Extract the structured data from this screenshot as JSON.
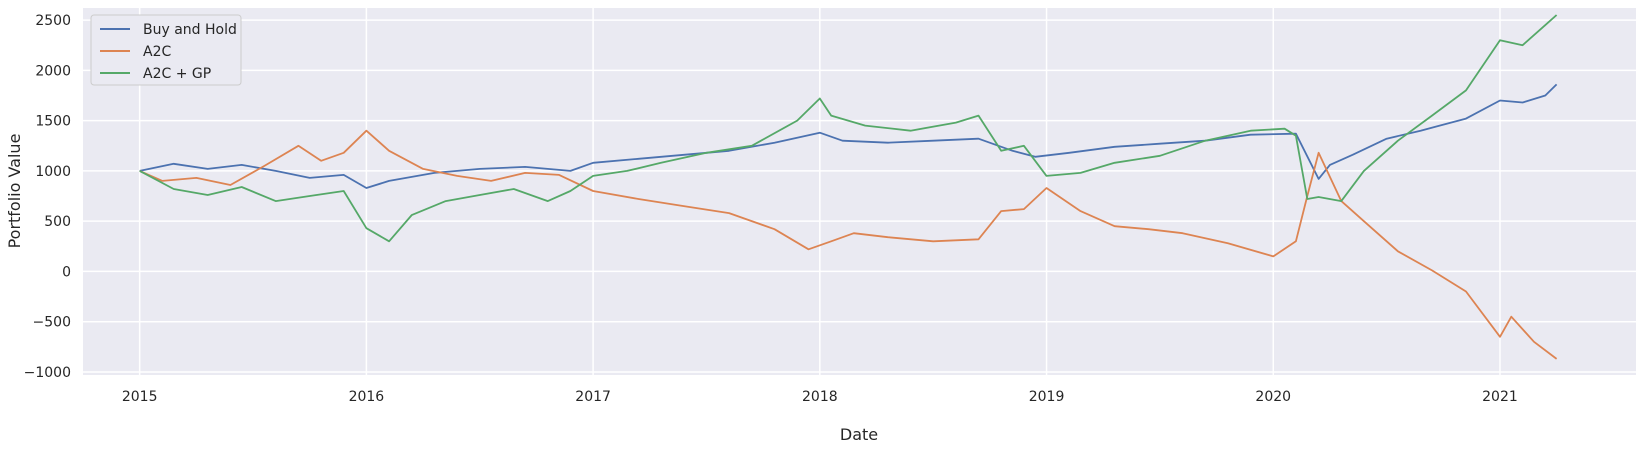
{
  "chart_data": {
    "type": "line",
    "title": "",
    "xlabel": "Date",
    "ylabel": "Portfolio Value",
    "xlim": [
      2014.75,
      2021.6
    ],
    "ylim": [
      -1030,
      2620
    ],
    "x_ticks": [
      2015,
      2016,
      2017,
      2018,
      2019,
      2020,
      2021
    ],
    "x_tick_labels": [
      "2015",
      "2016",
      "2017",
      "2018",
      "2019",
      "2020",
      "2021"
    ],
    "y_ticks": [
      -1000,
      -500,
      0,
      500,
      1000,
      1500,
      2000,
      2500
    ],
    "y_tick_labels": [
      "−1000",
      "−500",
      "0",
      "500",
      "1000",
      "1500",
      "2000",
      "2500"
    ],
    "grid": true,
    "legend_position": "top-left",
    "series": [
      {
        "name": "Buy and Hold",
        "color": "#4c72b0",
        "x": [
          2015.0,
          2015.15,
          2015.3,
          2015.45,
          2015.6,
          2015.75,
          2015.9,
          2016.0,
          2016.1,
          2016.3,
          2016.5,
          2016.7,
          2016.9,
          2017.0,
          2017.2,
          2017.4,
          2017.6,
          2017.8,
          2018.0,
          2018.1,
          2018.3,
          2018.5,
          2018.7,
          2018.85,
          2018.95,
          2019.1,
          2019.3,
          2019.5,
          2019.7,
          2019.9,
          2020.1,
          2020.2,
          2020.25,
          2020.35,
          2020.5,
          2020.65,
          2020.85,
          2021.0,
          2021.1,
          2021.2,
          2021.25
        ],
        "y": [
          1000,
          1070,
          1020,
          1060,
          1000,
          930,
          960,
          830,
          900,
          980,
          1020,
          1040,
          1000,
          1080,
          1120,
          1160,
          1200,
          1280,
          1380,
          1300,
          1280,
          1300,
          1320,
          1200,
          1140,
          1180,
          1240,
          1270,
          1300,
          1360,
          1370,
          920,
          1060,
          1160,
          1320,
          1400,
          1520,
          1700,
          1680,
          1750,
          1860
        ]
      },
      {
        "name": "A2C",
        "color": "#dd8452",
        "x": [
          2015.0,
          2015.1,
          2015.25,
          2015.4,
          2015.55,
          2015.7,
          2015.8,
          2015.9,
          2016.0,
          2016.1,
          2016.25,
          2016.4,
          2016.55,
          2016.7,
          2016.85,
          2017.0,
          2017.2,
          2017.4,
          2017.6,
          2017.8,
          2017.95,
          2018.05,
          2018.15,
          2018.3,
          2018.5,
          2018.7,
          2018.8,
          2018.9,
          2019.0,
          2019.15,
          2019.3,
          2019.45,
          2019.6,
          2019.8,
          2020.0,
          2020.1,
          2020.15,
          2020.2,
          2020.3,
          2020.4,
          2020.55,
          2020.7,
          2020.85,
          2021.0,
          2021.05,
          2021.15,
          2021.25
        ],
        "y": [
          1000,
          900,
          930,
          860,
          1050,
          1250,
          1100,
          1180,
          1400,
          1200,
          1020,
          950,
          900,
          980,
          960,
          800,
          720,
          650,
          580,
          420,
          220,
          300,
          380,
          340,
          300,
          320,
          600,
          620,
          830,
          600,
          450,
          420,
          380,
          280,
          150,
          300,
          750,
          1180,
          700,
          500,
          200,
          10,
          -200,
          -650,
          -450,
          -700,
          -870
        ]
      },
      {
        "name": "A2C + GP",
        "color": "#55a868",
        "x": [
          2015.0,
          2015.15,
          2015.3,
          2015.45,
          2015.6,
          2015.75,
          2015.9,
          2016.0,
          2016.1,
          2016.2,
          2016.35,
          2016.5,
          2016.65,
          2016.8,
          2016.9,
          2017.0,
          2017.15,
          2017.3,
          2017.5,
          2017.7,
          2017.9,
          2018.0,
          2018.05,
          2018.2,
          2018.4,
          2018.6,
          2018.7,
          2018.8,
          2018.9,
          2019.0,
          2019.15,
          2019.3,
          2019.5,
          2019.7,
          2019.9,
          2020.05,
          2020.1,
          2020.15,
          2020.2,
          2020.3,
          2020.4,
          2020.55,
          2020.7,
          2020.85,
          2021.0,
          2021.1,
          2021.2,
          2021.25
        ],
        "y": [
          1000,
          820,
          760,
          840,
          700,
          750,
          800,
          430,
          300,
          560,
          700,
          760,
          820,
          700,
          800,
          950,
          1000,
          1080,
          1180,
          1250,
          1500,
          1720,
          1550,
          1450,
          1400,
          1480,
          1550,
          1200,
          1250,
          950,
          980,
          1080,
          1150,
          1300,
          1400,
          1420,
          1350,
          720,
          740,
          700,
          1000,
          1300,
          1550,
          1800,
          2300,
          2250,
          2450,
          2550
        ]
      }
    ]
  }
}
